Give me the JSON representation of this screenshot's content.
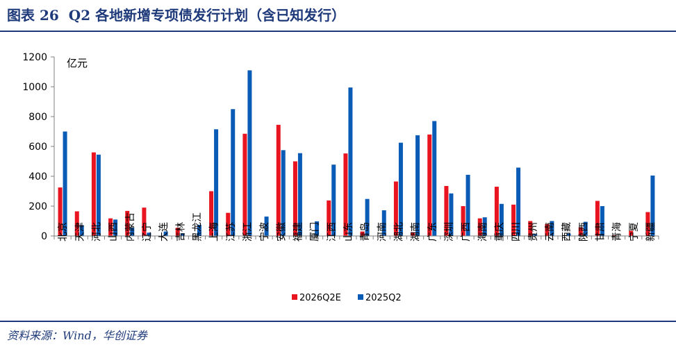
{
  "figure": {
    "label": "图表 26",
    "title": "Q2 各地新增专项债发行计划（含已知发行）",
    "source": "资料来源：Wind，华创证券"
  },
  "chart_data": {
    "type": "bar",
    "unit": "亿元",
    "ylim": [
      0,
      1200
    ],
    "yticks": [
      0,
      200,
      400,
      600,
      800,
      1000,
      1200
    ],
    "grid": false,
    "legend_position": "bottom",
    "categories": [
      "北京",
      "天津",
      "河北",
      "山西",
      "内蒙古",
      "辽宁",
      "大连",
      "吉林",
      "黑龙江",
      "上海",
      "江苏",
      "浙江",
      "宁波",
      "安徽",
      "福建",
      "厦门",
      "江西",
      "山东",
      "青岛",
      "河南",
      "湖北",
      "湖南",
      "广东",
      "深圳",
      "广西",
      "海南",
      "重庆",
      "四川",
      "贵州",
      "云南",
      "西藏",
      "陕西",
      "甘肃",
      "青海",
      "宁夏",
      "新疆"
    ],
    "series": [
      {
        "name": "2026Q2E",
        "color": "#e8141f",
        "values": [
          325,
          165,
          560,
          118,
          168,
          190,
          0,
          55,
          0,
          300,
          155,
          685,
          0,
          745,
          500,
          0,
          238,
          553,
          30,
          0,
          365,
          25,
          680,
          335,
          200,
          118,
          330,
          210,
          100,
          80,
          0,
          58,
          235,
          5,
          35,
          160
        ]
      },
      {
        "name": "2025Q2",
        "color": "#0a5bb5",
        "values": [
          700,
          72,
          545,
          110,
          55,
          22,
          30,
          18,
          75,
          715,
          850,
          1110,
          130,
          575,
          555,
          98,
          478,
          995,
          248,
          172,
          625,
          675,
          770,
          285,
          410,
          125,
          215,
          458,
          12,
          100,
          15,
          95,
          200,
          0,
          0,
          405
        ]
      }
    ]
  }
}
